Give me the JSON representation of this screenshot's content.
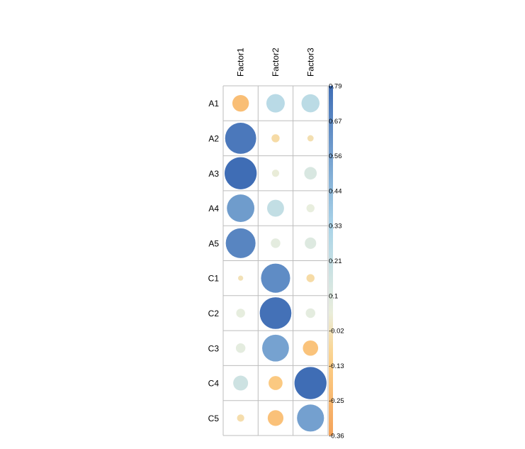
{
  "chart_data": {
    "type": "heatmap",
    "style": "corrplot-circle",
    "rows": [
      "A1",
      "A2",
      "A3",
      "A4",
      "A5",
      "C1",
      "C2",
      "C3",
      "C4",
      "C5"
    ],
    "columns": [
      "Factor1",
      "Factor2",
      "Factor3"
    ],
    "values": [
      [
        -0.21,
        0.26,
        0.25
      ],
      [
        0.74,
        -0.05,
        -0.03
      ],
      [
        0.79,
        0.04,
        0.12
      ],
      [
        0.58,
        0.22,
        0.05
      ],
      [
        0.68,
        0.07,
        0.1
      ],
      [
        -0.02,
        0.65,
        -0.05
      ],
      [
        0.06,
        0.77,
        0.07
      ],
      [
        0.07,
        0.55,
        -0.18
      ],
      [
        0.17,
        -0.15,
        0.79
      ],
      [
        -0.04,
        -0.19,
        0.56
      ]
    ],
    "colorbar": {
      "min": -0.36,
      "max": 0.79,
      "tick_labels": [
        "0.79",
        "0.67",
        "0.56",
        "0.44",
        "0.33",
        "0.21",
        "0.1",
        "-0.02",
        "-0.13",
        "-0.25",
        "-0.36"
      ]
    },
    "colors": {
      "negative": "#F4A259",
      "mid": "#E8EEDE",
      "positive": "#3F6DB5",
      "neg_mid": "#FDD28A",
      "pos_mid": "#A9D3E8",
      "grid": "#BDBDBD"
    }
  }
}
